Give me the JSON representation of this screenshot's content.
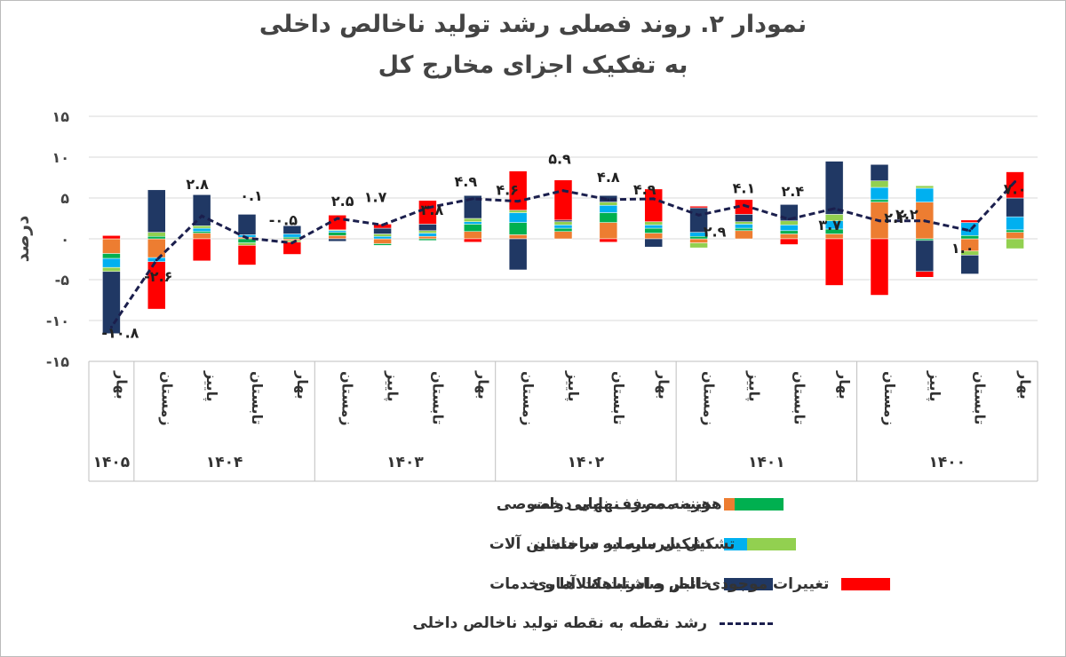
{
  "title_line1": "نمودار ۲. روند فصلی رشد تولید ناخالص داخلی",
  "title_line2": "به تفکیک اجزای مخارج کل",
  "chart_data": {
    "type": "bar",
    "stacked": true,
    "ylabel": "درصد",
    "ylim": [
      -15,
      15
    ],
    "yticks": [
      -15,
      -10,
      -5,
      0,
      5,
      10,
      15
    ],
    "ytick_labels": [
      "-۱۵",
      "-۱۰",
      "-۵",
      "۰",
      "۵",
      "۱۰",
      "۱۵"
    ],
    "categories": [
      "بهار",
      "تابستان",
      "پاییز",
      "زمستان",
      "بهار",
      "تابستان",
      "پاییز",
      "زمستان",
      "بهار",
      "تابستان",
      "پاییز",
      "زمستان",
      "بهار",
      "تابستان",
      "پاییز",
      "زمستان",
      "بهار",
      "تابستان",
      "پاییز",
      "زمستان",
      "بهار"
    ],
    "years": [
      {
        "label": "۱۴۰۰",
        "count": 4
      },
      {
        "label": "۱۴۰۱",
        "count": 4
      },
      {
        "label": "۱۴۰۲",
        "count": 4
      },
      {
        "label": "۱۴۰۳",
        "count": 4
      },
      {
        "label": "۱۴۰۴",
        "count": 4
      },
      {
        "label": "۱۴۰۵",
        "count": 1
      }
    ],
    "series": [
      {
        "name": "هزینه مصرف نهایی خصوصی",
        "color": "#ed7d31",
        "values": [
          0.8,
          -1.5,
          4.5,
          4.5,
          0.6,
          0.6,
          1.0,
          -0.5,
          0.7,
          2.0,
          0.9,
          0.5,
          0.9,
          0.3,
          -0.6,
          0.4,
          -0.2,
          0.2,
          0.7,
          -2.3,
          -1.8
        ]
      },
      {
        "name": "هزینه مصرف نهایی دولت",
        "color": "#00b050",
        "values": [
          0.3,
          0.4,
          -0.2,
          0.3,
          0.6,
          0.4,
          0.3,
          0.3,
          0.6,
          1.2,
          0.4,
          1.5,
          0.9,
          -0.2,
          -0.2,
          0.4,
          0.2,
          -0.5,
          0.2,
          0.3,
          -0.6
        ]
      },
      {
        "name": "تشکیل سرمایه در ماشین آلات",
        "color": "#00b0f0",
        "values": [
          1.6,
          1.6,
          1.7,
          1.5,
          1.0,
          0.7,
          0.5,
          0.5,
          0.4,
          0.9,
          0.4,
          1.2,
          0.3,
          0.4,
          0.3,
          0.2,
          0.4,
          0.3,
          0.4,
          -0.5,
          -1.1
        ]
      },
      {
        "name": "تشکیل سرمایه در ساختمان",
        "color": "#92d050",
        "values": [
          -1.2,
          -0.5,
          0.3,
          0.8,
          0.8,
          0.5,
          0.3,
          -0.6,
          0.4,
          0.4,
          0.4,
          0.3,
          0.4,
          0.3,
          0.3,
          0.1,
          -0.2,
          -0.3,
          0.3,
          0.5,
          -0.5
        ]
      },
      {
        "name": "خالص صادرات کالاها و خدمات",
        "color": "#203864",
        "values": [
          2.3,
          -2.3,
          -3.8,
          2.0,
          6.5,
          2.0,
          0.9,
          3.0,
          -1.0,
          0.8,
          0.2,
          -3.8,
          2.8,
          0.8,
          0.7,
          -0.3,
          1.0,
          2.5,
          3.8,
          5.2,
          -7.6
        ]
      },
      {
        "name": "تغییرات موجودی انبار و اشتباهات آماری",
        "color": "#ff0000",
        "values": [
          3.2,
          0.3,
          -0.7,
          -6.9,
          -5.7,
          -0.7,
          1.8,
          0.2,
          4.0,
          -0.4,
          4.9,
          4.8,
          -0.4,
          2.9,
          0.5,
          1.8,
          -1.5,
          -2.4,
          -2.7,
          -5.8,
          0.4
        ]
      }
    ],
    "line": {
      "name": "رشد نقطه به نقطه تولید ناخالص داخلی",
      "color": "#1b1f4d",
      "values": [
        7.0,
        1.0,
        2.2,
        2.2,
        3.7,
        2.4,
        4.1,
        2.9,
        4.9,
        4.8,
        5.9,
        4.6,
        4.9,
        3.8,
        1.7,
        2.5,
        -0.5,
        0.1,
        2.8,
        -2.6,
        -10.8
      ],
      "labels": [
        "۷.۰",
        "۱.۰",
        "۲.۲",
        "۲.۲",
        "۳.۷",
        "۲.۴",
        "۴.۱",
        "۲.۹",
        "۴.۹",
        "۴.۸",
        "۵.۹",
        "۴.۶",
        "۴.۹",
        "۳.۸",
        "۱.۷",
        "۲.۵",
        "-۰.۵",
        "۰.۱",
        "۲.۸",
        "-۲.۶",
        "-۱۰.۸"
      ]
    },
    "legend_placement": "bottom"
  }
}
